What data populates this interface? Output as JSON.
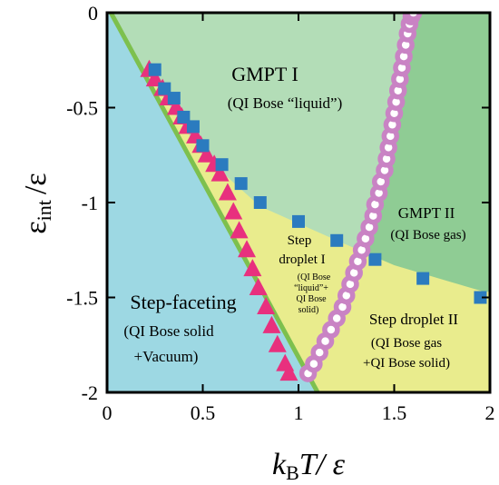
{
  "chart_data": {
    "type": "scatter",
    "xlabel": "k_B T/ ε",
    "xlabel_parts": {
      "k": "k",
      "sub": "B",
      "rest": "T/ ε"
    },
    "ylabel": "ε_int /ε",
    "ylabel_parts": {
      "eps": "ε",
      "sub": "int",
      "rest": "/ε"
    },
    "xlim": [
      0,
      2
    ],
    "ylim": [
      -2,
      0
    ],
    "xticks": [
      0,
      0.5,
      1,
      1.5,
      2
    ],
    "xtick_labels": [
      "0",
      "0.5",
      "1",
      "1.5",
      "2"
    ],
    "yticks": [
      0,
      -0.5,
      -1,
      -1.5,
      -2
    ],
    "ytick_labels": [
      "0",
      "-0.5",
      "-1",
      "-1.5",
      "-2"
    ],
    "grid": false,
    "colors": {
      "faceting_region": "#9dd8e3",
      "gmpt1_region": "#b3ddb7",
      "gmpt2_region": "#8fcc94",
      "droplet_region": "#e9ec8d",
      "green_line": "#7dc04e",
      "triangles": "#e8307e",
      "squares": "#2b7bbf",
      "circles": "#c983c4"
    },
    "boundaries": {
      "faceting_green_line": [
        [
          0.02,
          0
        ],
        [
          1.1,
          -2
        ]
      ],
      "gmpt_droplet_curve": [
        [
          0.22,
          -0.33
        ],
        [
          0.5,
          -0.75
        ],
        [
          0.8,
          -1.02
        ],
        [
          1.2,
          -1.2
        ],
        [
          1.5,
          -1.33
        ],
        [
          1.8,
          -1.42
        ],
        [
          1.97,
          -1.47
        ]
      ],
      "gmpt1_gmpt2_curve": [
        [
          1.05,
          -1.9
        ],
        [
          1.2,
          -1.65
        ],
        [
          1.3,
          -1.4
        ],
        [
          1.4,
          -1.1
        ],
        [
          1.48,
          -0.8
        ],
        [
          1.54,
          -0.45
        ],
        [
          1.6,
          0
        ]
      ]
    },
    "series": [
      {
        "marker": "triangle",
        "x": [
          0.22,
          0.25,
          0.29,
          0.32,
          0.36,
          0.39,
          0.42,
          0.46,
          0.49,
          0.52,
          0.56,
          0.59,
          0.63,
          0.66,
          0.69,
          0.73,
          0.76,
          0.79,
          0.83,
          0.86,
          0.89,
          0.93,
          0.95
        ],
        "y": [
          -0.3,
          -0.35,
          -0.4,
          -0.45,
          -0.5,
          -0.55,
          -0.6,
          -0.65,
          -0.7,
          -0.75,
          -0.8,
          -0.85,
          -0.95,
          -1.05,
          -1.15,
          -1.25,
          -1.35,
          -1.45,
          -1.55,
          -1.65,
          -1.75,
          -1.85,
          -1.9
        ]
      },
      {
        "marker": "square",
        "x": [
          0.25,
          0.3,
          0.35,
          0.4,
          0.45,
          0.5,
          0.6,
          0.7,
          0.8,
          1.0,
          1.2,
          1.4,
          1.65,
          1.95
        ],
        "y": [
          -0.3,
          -0.4,
          -0.45,
          -0.55,
          -0.6,
          -0.7,
          -0.8,
          -0.9,
          -1.0,
          -1.1,
          -1.2,
          -1.3,
          -1.4,
          -1.5
        ]
      },
      {
        "marker": "circle",
        "x": [
          1.05,
          1.08,
          1.11,
          1.14,
          1.17,
          1.2,
          1.23,
          1.25,
          1.27,
          1.29,
          1.31,
          1.33,
          1.35,
          1.37,
          1.39,
          1.4,
          1.42,
          1.43,
          1.45,
          1.46,
          1.47,
          1.48,
          1.49,
          1.5,
          1.51,
          1.52,
          1.53,
          1.54,
          1.55,
          1.56,
          1.57,
          1.58,
          1.59,
          1.6
        ],
        "y": [
          -1.9,
          -1.85,
          -1.79,
          -1.73,
          -1.67,
          -1.61,
          -1.55,
          -1.49,
          -1.43,
          -1.37,
          -1.31,
          -1.25,
          -1.19,
          -1.13,
          -1.07,
          -1.01,
          -0.95,
          -0.89,
          -0.83,
          -0.77,
          -0.71,
          -0.65,
          -0.59,
          -0.53,
          -0.47,
          -0.41,
          -0.35,
          -0.29,
          -0.23,
          -0.17,
          -0.11,
          -0.06,
          -0.02,
          0.0
        ]
      }
    ],
    "annotations": {
      "gmpt1_title": "GMPT I",
      "gmpt1_sub": "(QI Bose “liquid”)",
      "gmpt2_title": "GMPT II",
      "gmpt2_sub": "(QI Bose gas)",
      "faceting_title": "Step-faceting",
      "faceting_sub1": "(QI Bose solid",
      "faceting_sub2": "+Vacuum)",
      "droplet2_title": "Step droplet II",
      "droplet2_sub1": "(QI Bose gas",
      "droplet2_sub2": "+QI Bose solid)",
      "droplet1_line1": "Step",
      "droplet1_line2": "droplet I",
      "droplet1_sub1": "(QI Bose",
      "droplet1_sub2": "“liquid”+",
      "droplet1_sub3": "QI Bose",
      "droplet1_sub4": "solid)"
    }
  }
}
